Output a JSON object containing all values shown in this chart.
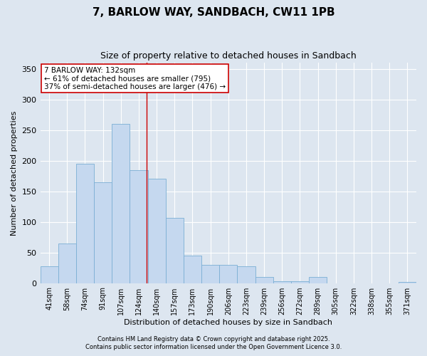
{
  "title1": "7, BARLOW WAY, SANDBACH, CW11 1PB",
  "title2": "Size of property relative to detached houses in Sandbach",
  "xlabel": "Distribution of detached houses by size in Sandbach",
  "ylabel": "Number of detached properties",
  "categories": [
    "41sqm",
    "58sqm",
    "74sqm",
    "91sqm",
    "107sqm",
    "124sqm",
    "140sqm",
    "157sqm",
    "173sqm",
    "190sqm",
    "206sqm",
    "223sqm",
    "239sqm",
    "256sqm",
    "272sqm",
    "289sqm",
    "305sqm",
    "322sqm",
    "338sqm",
    "355sqm",
    "371sqm"
  ],
  "values": [
    28,
    65,
    195,
    165,
    260,
    185,
    170,
    107,
    45,
    30,
    30,
    28,
    10,
    3,
    3,
    10,
    0,
    0,
    0,
    0,
    2
  ],
  "bar_color": "#c5d8ef",
  "bar_edge_color": "#7bafd4",
  "background_color": "#dde6f0",
  "grid_color": "#ffffff",
  "vline_x": 5.42,
  "vline_color": "#cc0000",
  "annotation_text": "7 BARLOW WAY: 132sqm\n← 61% of detached houses are smaller (795)\n37% of semi-detached houses are larger (476) →",
  "annotation_box_color": "#ffffff",
  "annotation_box_edge": "#cc0000",
  "footer1": "Contains HM Land Registry data © Crown copyright and database right 2025.",
  "footer2": "Contains public sector information licensed under the Open Government Licence 3.0.",
  "ylim": [
    0,
    360
  ],
  "yticks": [
    0,
    50,
    100,
    150,
    200,
    250,
    300,
    350
  ]
}
